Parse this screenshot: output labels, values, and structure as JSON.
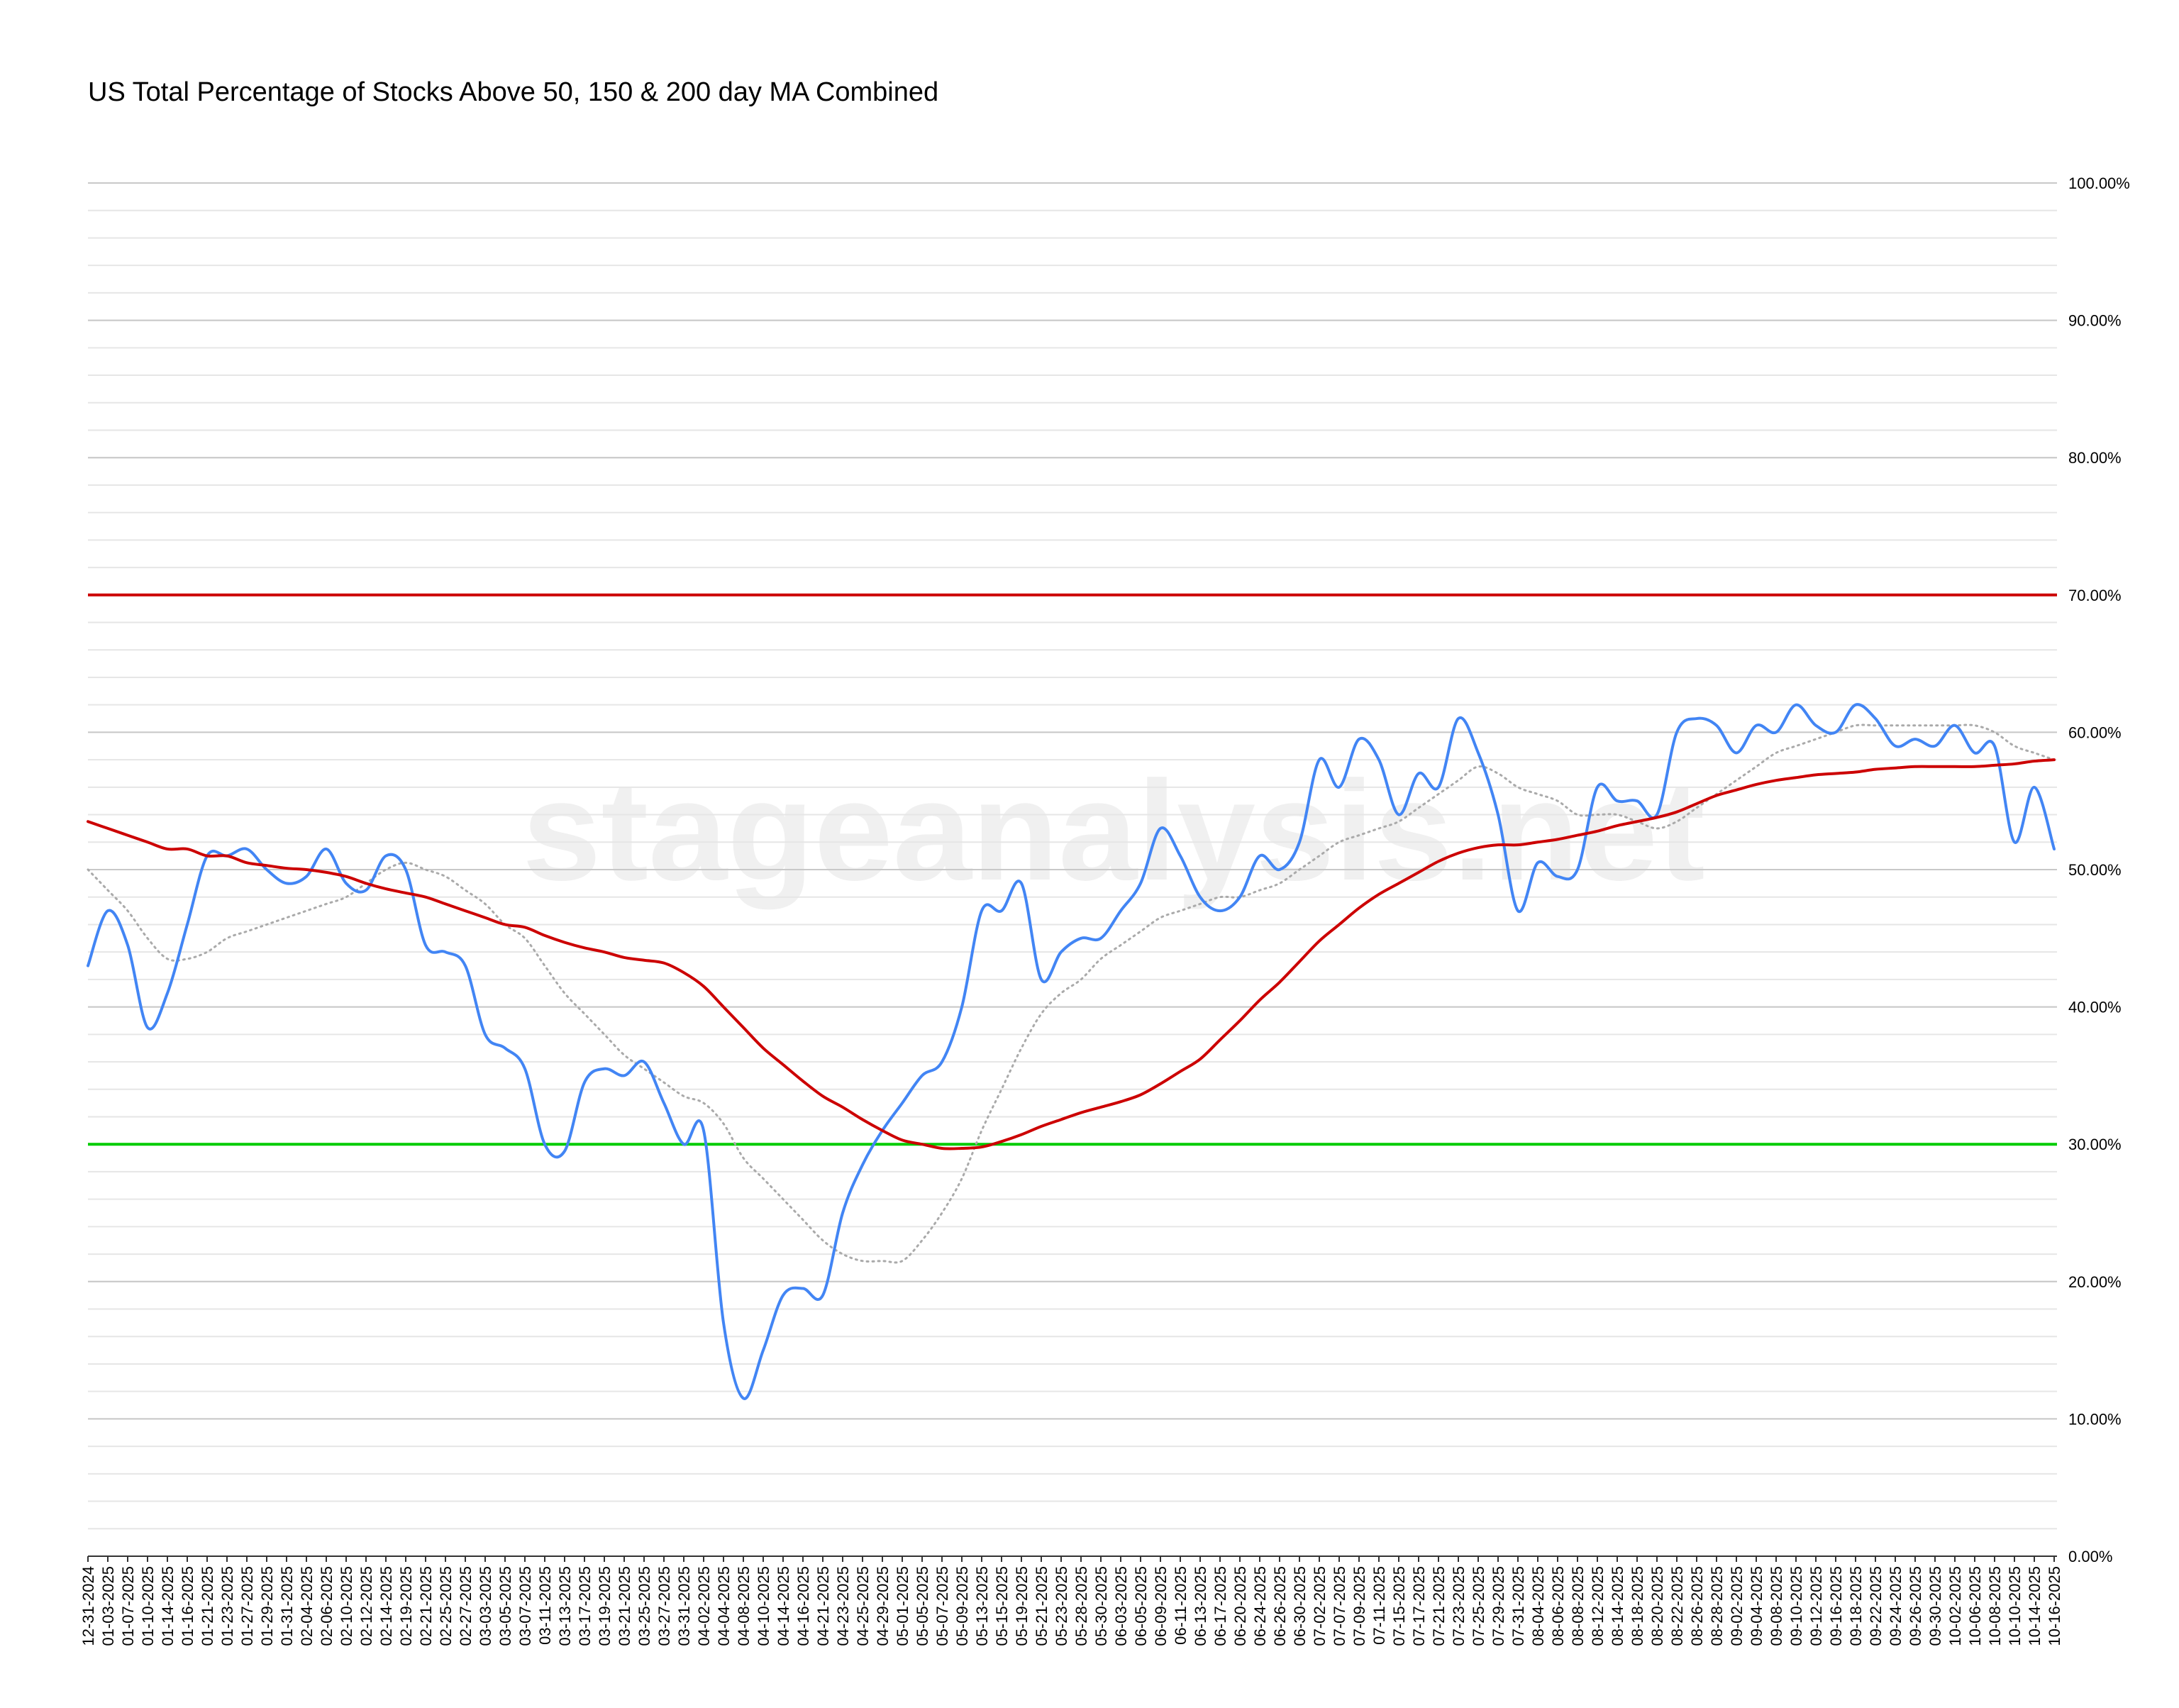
{
  "chart_data": {
    "type": "line",
    "title": "US Total Percentage of Stocks Above 50, 150 & 200 day MA Combined",
    "watermark": "stageanalysis.net",
    "categories": [
      "12-31-2024",
      "01-03-2025",
      "01-07-2025",
      "01-10-2025",
      "01-14-2025",
      "01-16-2025",
      "01-21-2025",
      "01-23-2025",
      "01-27-2025",
      "01-29-2025",
      "01-31-2025",
      "02-04-2025",
      "02-06-2025",
      "02-10-2025",
      "02-12-2025",
      "02-14-2025",
      "02-19-2025",
      "02-21-2025",
      "02-25-2025",
      "02-27-2025",
      "03-03-2025",
      "03-05-2025",
      "03-07-2025",
      "03-11-2025",
      "03-13-2025",
      "03-17-2025",
      "03-19-2025",
      "03-21-2025",
      "03-25-2025",
      "03-27-2025",
      "03-31-2025",
      "04-02-2025",
      "04-04-2025",
      "04-08-2025",
      "04-10-2025",
      "04-14-2025",
      "04-16-2025",
      "04-21-2025",
      "04-23-2025",
      "04-25-2025",
      "04-29-2025",
      "05-01-2025",
      "05-05-2025",
      "05-07-2025",
      "05-09-2025",
      "05-13-2025",
      "05-15-2025",
      "05-19-2025",
      "05-21-2025",
      "05-23-2025",
      "05-28-2025",
      "05-30-2025",
      "06-03-2025",
      "06-05-2025",
      "06-09-2025",
      "06-11-2025",
      "06-13-2025",
      "06-17-2025",
      "06-20-2025",
      "06-24-2025",
      "06-26-2025",
      "06-30-2025",
      "07-02-2025",
      "07-07-2025",
      "07-09-2025",
      "07-11-2025",
      "07-15-2025",
      "07-17-2025",
      "07-21-2025",
      "07-23-2025",
      "07-25-2025",
      "07-29-2025",
      "07-31-2025",
      "08-04-2025",
      "08-06-2025",
      "08-08-2025",
      "08-12-2025",
      "08-14-2025",
      "08-18-2025",
      "08-20-2025",
      "08-22-2025",
      "08-26-2025",
      "08-28-2025",
      "09-02-2025",
      "09-04-2025",
      "09-08-2025",
      "09-10-2025",
      "09-12-2025",
      "09-16-2025",
      "09-18-2025",
      "09-22-2025",
      "09-24-2025",
      "09-26-2025",
      "09-30-2025",
      "10-02-2025",
      "10-06-2025",
      "10-08-2025",
      "10-10-2025",
      "10-14-2025",
      "10-16-2025"
    ],
    "series": [
      {
        "color": "#aaaaaa",
        "dash": "dotted",
        "values": [
          50,
          48.5,
          47,
          45,
          43.5,
          43.5,
          44,
          45,
          45.5,
          46,
          46.5,
          47,
          47.5,
          48,
          49,
          50,
          50.5,
          50,
          49.5,
          48.5,
          47.5,
          46,
          45,
          43,
          41,
          39.5,
          38,
          36.5,
          35.5,
          34.5,
          33.5,
          33,
          31.5,
          29,
          27.5,
          26,
          24.5,
          23,
          22,
          21.5,
          21.5,
          21.5,
          23,
          25,
          27.5,
          31,
          34,
          37,
          39.5,
          41,
          42,
          43.5,
          44.5,
          45.5,
          46.5,
          47,
          47.5,
          48,
          48,
          48.5,
          49,
          50,
          51,
          52,
          52.5,
          53,
          53.5,
          54.5,
          55.5,
          56.5,
          57.5,
          57,
          56,
          55.5,
          55,
          54,
          54,
          54,
          53.5,
          53,
          53.5,
          54.5,
          55.5,
          56.5,
          57.5,
          58.5,
          59,
          59.5,
          60,
          60.5,
          60.5,
          60.5,
          60.5,
          60.5,
          60.5,
          60.5,
          60,
          59,
          58.5,
          58
        ]
      },
      {
        "color": "#4285f4",
        "values": [
          43,
          47,
          44.5,
          38.5,
          41,
          46,
          51,
          51,
          51.5,
          50,
          49,
          49.5,
          51.5,
          49,
          48.5,
          51,
          50,
          44.5,
          44,
          43,
          38,
          37,
          35.5,
          30,
          29.5,
          34.5,
          35.5,
          35,
          36,
          33,
          30,
          31,
          17,
          11.5,
          15,
          19,
          19.5,
          19,
          25,
          28.5,
          31,
          33,
          35,
          36,
          40,
          47,
          47,
          49,
          42,
          44,
          45,
          45,
          47,
          49,
          53,
          51,
          48,
          47,
          48,
          51,
          50,
          52,
          58,
          56,
          59.5,
          58,
          54,
          57,
          56,
          61,
          58.5,
          54,
          47,
          50.5,
          49.5,
          50,
          56,
          55,
          55,
          54,
          60,
          61,
          60.5,
          58.5,
          60.5,
          60,
          62,
          60.5,
          60,
          62,
          61,
          59,
          59.5,
          59,
          60.5,
          58.5,
          59,
          52,
          56,
          51.5
        ]
      },
      {
        "color": "#cc0000",
        "values": [
          53.5,
          53,
          52.5,
          52,
          51.5,
          51.5,
          51,
          51,
          50.5,
          50.3,
          50.1,
          50,
          49.8,
          49.5,
          49,
          48.6,
          48.3,
          48,
          47.5,
          47,
          46.5,
          46,
          45.8,
          45.2,
          44.7,
          44.3,
          44,
          43.6,
          43.4,
          43.2,
          42.5,
          41.5,
          40,
          38.5,
          37,
          35.8,
          34.6,
          33.5,
          32.7,
          31.8,
          31,
          30.3,
          30,
          29.7,
          29.7,
          29.8,
          30.2,
          30.7,
          31.3,
          31.8,
          32.3,
          32.7,
          33.1,
          33.6,
          34.4,
          35.3,
          36.2,
          37.6,
          39,
          40.5,
          41.8,
          43.3,
          44.8,
          46,
          47.2,
          48.2,
          49,
          49.8,
          50.6,
          51.2,
          51.6,
          51.8,
          51.8,
          52,
          52.2,
          52.5,
          52.8,
          53.2,
          53.5,
          53.8,
          54.2,
          54.8,
          55.4,
          55.8,
          56.2,
          56.5,
          56.7,
          56.9,
          57,
          57.1,
          57.3,
          57.4,
          57.5,
          57.5,
          57.5,
          57.5,
          57.6,
          57.7,
          57.9,
          58
        ]
      }
    ],
    "reference_lines": [
      {
        "value": 70,
        "color": "#cc0000"
      },
      {
        "value": 30,
        "color": "#00cc00"
      }
    ],
    "ylim": [
      0,
      100
    ],
    "yticks": [
      {
        "value": 0,
        "label": "0.00%"
      },
      {
        "value": 10,
        "label": "10.00%"
      },
      {
        "value": 20,
        "label": "20.00%"
      },
      {
        "value": 30,
        "label": "30.00%"
      },
      {
        "value": 40,
        "label": "40.00%"
      },
      {
        "value": 50,
        "label": "50.00%"
      },
      {
        "value": 60,
        "label": "60.00%"
      },
      {
        "value": 70,
        "label": "70.00%"
      },
      {
        "value": 80,
        "label": "80.00%"
      },
      {
        "value": 90,
        "label": "90.00%"
      },
      {
        "value": 100,
        "label": "100.00%"
      }
    ],
    "minor_grid_step": 2,
    "grid": true
  }
}
